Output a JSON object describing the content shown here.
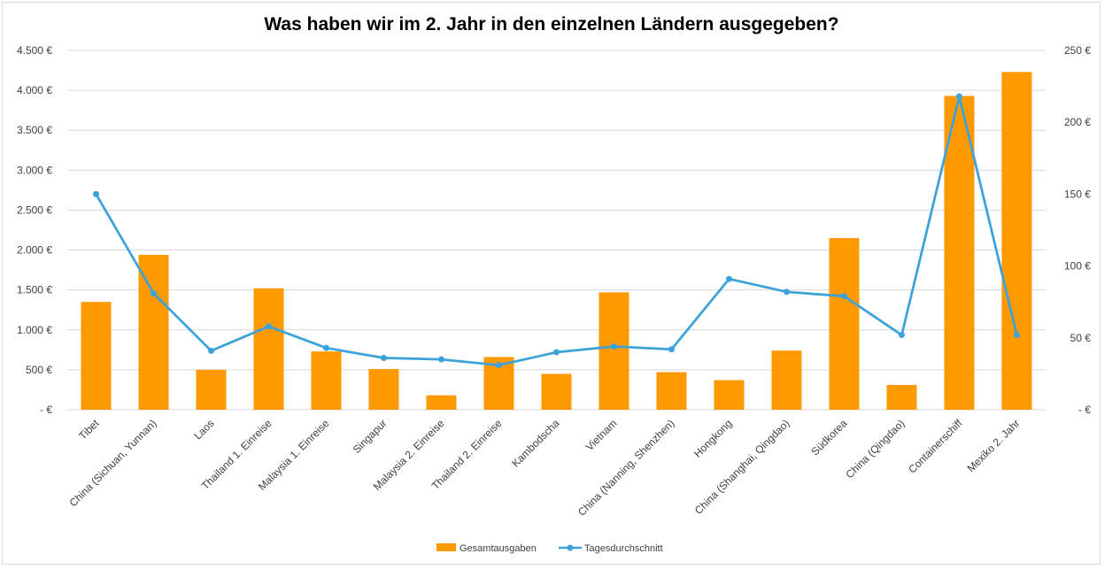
{
  "chart_data": {
    "type": "bar",
    "title": "Was haben wir im 2. Jahr in den einzelnen Ländern ausgegeben?",
    "categories": [
      "Tibet",
      "China (Sichuan, Yunnan)",
      "Laos",
      "Thailand 1. Einreise",
      "Malaysia 1. Einreise",
      "Singapur",
      "Malaysia 2. Einreise",
      "Thailand 2. Einreise",
      "Kambodscha",
      "Vietnam",
      "China (Nanning, Shenzhen)",
      "Hongkong",
      "China (Shanghai, Qingdao)",
      "Südkorea",
      "China (Qingdao)",
      "Containerschiff",
      "Mexiko 2. Jahr"
    ],
    "series": [
      {
        "name": "Gesamtausgaben",
        "kind": "bar",
        "axis": "left",
        "color": "#FF9900",
        "values": [
          1350,
          1940,
          500,
          1520,
          730,
          510,
          180,
          660,
          450,
          1470,
          470,
          370,
          740,
          2150,
          310,
          3930,
          4230
        ]
      },
      {
        "name": "Tagesdurchschnitt",
        "kind": "line",
        "axis": "right",
        "color": "#3CA3DA",
        "values": [
          150,
          81,
          41,
          58,
          43,
          36,
          35,
          31,
          40,
          44,
          42,
          91,
          82,
          79,
          52,
          218,
          52
        ]
      }
    ],
    "y_left": {
      "min": 0,
      "max": 4500,
      "step": 500,
      "tick_labels": [
        "- €",
        "500 €",
        "1.000 €",
        "1.500 €",
        "2.000 €",
        "2.500 €",
        "3.000 €",
        "3.500 €",
        "4.000 €",
        "4.500 €"
      ]
    },
    "y_right": {
      "min": 0,
      "max": 250,
      "step": 50,
      "tick_labels": [
        "- €",
        "50 €",
        "100 €",
        "150 €",
        "200 €",
        "250 €"
      ]
    },
    "grid": true,
    "legend": {
      "position": "bottom",
      "items": [
        "Gesamtausgaben",
        "Tagesdurchschnitt"
      ]
    }
  }
}
